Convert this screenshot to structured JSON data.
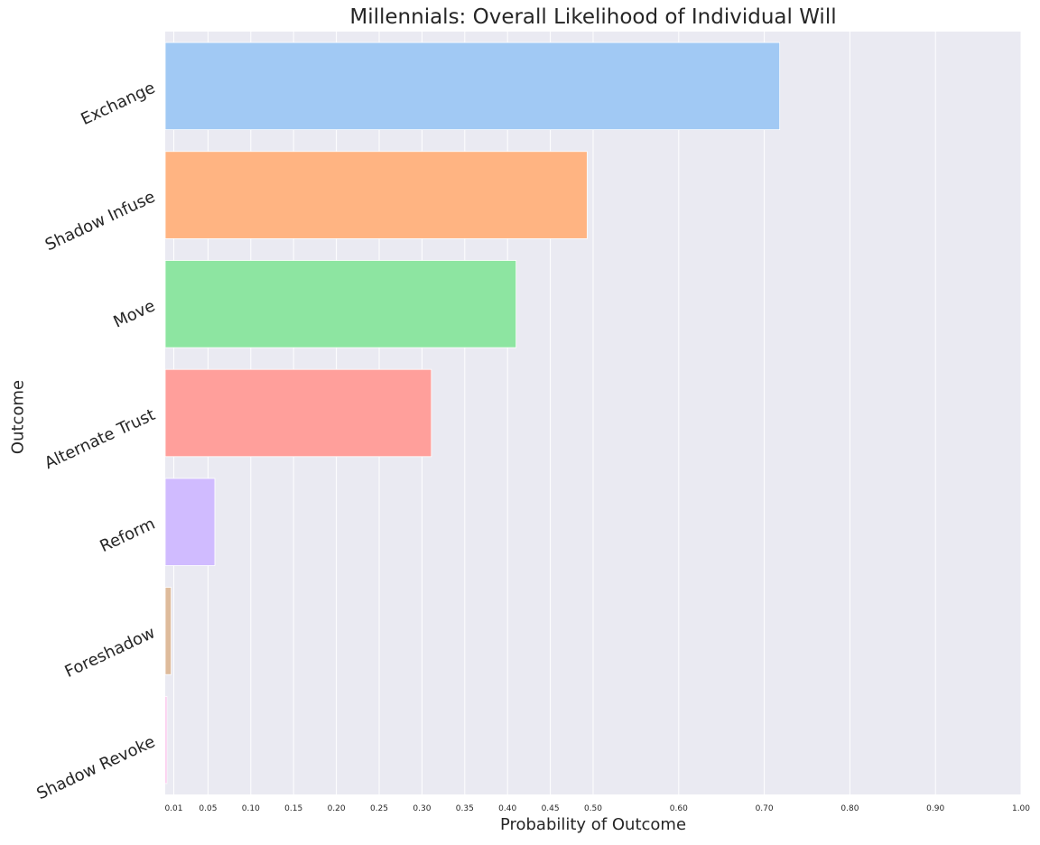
{
  "chart_data": {
    "type": "bar",
    "orientation": "horizontal",
    "title": "Millennials: Overall Likelihood of Individual Will",
    "xlabel": "Probability of Outcome",
    "ylabel": "Outcome",
    "xlim": [
      0,
      1.0
    ],
    "grid": true,
    "x_ticks": [
      "0.01",
      "0.05",
      "0.10",
      "0.15",
      "0.20",
      "0.25",
      "0.30",
      "0.35",
      "0.40",
      "0.45",
      "0.50",
      "0.60",
      "0.70",
      "0.80",
      "0.90",
      "1.00"
    ],
    "categories": [
      "Exchange",
      "Shadow Infuse",
      "Move",
      "Alternate Trust",
      "Reform",
      "Foreshadow",
      "Shadow Revoke"
    ],
    "values": [
      0.718,
      0.493,
      0.41,
      0.311,
      0.058,
      0.007,
      0.002
    ],
    "colors": [
      "#a1c9f4",
      "#ffb482",
      "#8de5a1",
      "#ff9f9b",
      "#d0bbff",
      "#debb9b",
      "#fab0e4"
    ]
  }
}
